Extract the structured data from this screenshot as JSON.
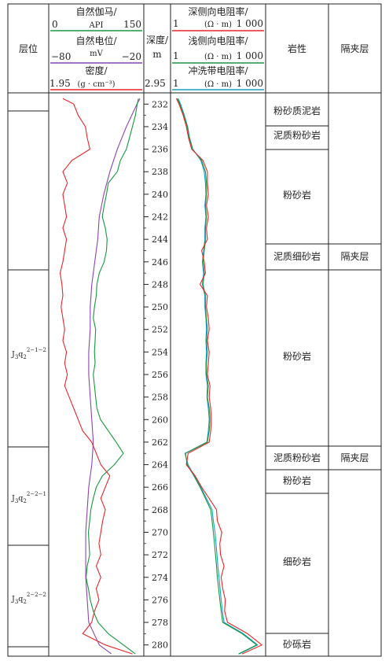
{
  "header": {
    "layer": "层位",
    "depth_label": "深度/",
    "depth_unit": "m",
    "lithology": "岩性",
    "interlayer": "隔夹层",
    "gamma": {
      "title": "自然伽马/",
      "unit": "API",
      "min": "0",
      "max": "150"
    },
    "sp": {
      "title": "自然电位/",
      "unit": "mV",
      "min": "−80",
      "max": "−20"
    },
    "density": {
      "title": "密度/",
      "unit_left": "1.95",
      "unit_mid": "(g · cm⁻³)",
      "unit_right": "2.95"
    },
    "deep_res": {
      "title": "深侧向电阻率/",
      "min": "1",
      "unit": "(Ω · m)",
      "max": "1 000"
    },
    "shallow_res": {
      "title": "浅侧向电阻率/",
      "min": "1",
      "unit": "(Ω · m)",
      "max": "1 000"
    },
    "flush_res": {
      "title": "冲洗带电阻率/",
      "min": "1",
      "unit": "(Ω · m)",
      "max": "1 000"
    }
  },
  "depth_ticks": [
    "232",
    "234",
    "236",
    "238",
    "240",
    "242",
    "244",
    "246",
    "248",
    "250",
    "252",
    "254",
    "256",
    "258",
    "260",
    "262",
    "264",
    "266",
    "268",
    "270",
    "272",
    "274",
    "276",
    "278",
    "280"
  ],
  "strata": [
    {
      "base": "J",
      "sub1": "3",
      "mid": "q",
      "sub2": "2",
      "sup": "2−1−2"
    },
    {
      "base": "J",
      "sub1": "3",
      "mid": "q",
      "sub2": "2",
      "sup": "2−2−1"
    },
    {
      "base": "J",
      "sub1": "3",
      "mid": "q",
      "sub2": "2",
      "sup": "2−2−2"
    }
  ],
  "lithology": [
    "粉砂质泥岩",
    "泥质粉砂岩",
    "粉砂岩",
    "泥质细砂岩",
    "粉砂岩",
    "泥质粉砂岩",
    "粉砂岩",
    "细砂岩",
    "砂砾岩"
  ],
  "interlayers": [
    "隔夹层",
    "隔夹层"
  ],
  "colors": {
    "gamma": "#1a9641",
    "sp": "#8e44ad",
    "density": "#e8262b",
    "deep": "#e8262b",
    "shallow": "#1a9641",
    "flush": "#17a2c8"
  },
  "chart_data": {
    "type": "line",
    "depth_range": [
      231,
      281
    ],
    "depth_axis": "depth (m), downward",
    "series": [
      {
        "name": "自然伽马",
        "unit": "API",
        "range": [
          0,
          150
        ],
        "depth": [
          231.5,
          232,
          233,
          234,
          235,
          236,
          237,
          238,
          239,
          240,
          241,
          242,
          243,
          244,
          245,
          246,
          247,
          248,
          249,
          250,
          251,
          252,
          253,
          254,
          255,
          256,
          257,
          258,
          259,
          260,
          261,
          262,
          263,
          264,
          265,
          266,
          267,
          268,
          269,
          270,
          271,
          272,
          273,
          274,
          275,
          276,
          277,
          278,
          279,
          280,
          280.8
        ],
        "values": [
          145,
          143,
          140,
          135,
          130,
          125,
          115,
          110,
          95,
          92,
          88,
          85,
          90,
          93,
          92,
          88,
          80,
          76,
          75,
          72,
          70,
          74,
          73,
          72,
          73,
          70,
          72,
          74,
          76,
          82,
          95,
          108,
          120,
          105,
          85,
          75,
          70,
          66,
          64,
          62,
          63,
          64,
          60,
          58,
          62,
          65,
          70,
          78,
          95,
          120,
          140
        ]
      },
      {
        "name": "自然电位",
        "unit": "mV",
        "range": [
          -80,
          -20
        ],
        "depth": [
          231.5,
          232,
          234,
          236,
          238,
          240,
          242,
          244,
          246,
          248,
          250,
          252,
          254,
          256,
          258,
          260,
          262,
          264,
          266,
          268,
          270,
          272,
          274,
          276,
          278,
          280,
          280.8
        ],
        "values": [
          -21,
          -23,
          -30,
          -36,
          -41,
          -45,
          -48,
          -49,
          -51,
          -53,
          -54,
          -54,
          -55,
          -55,
          -54,
          -53,
          -52,
          -53,
          -55,
          -56,
          -57,
          -57,
          -57,
          -56,
          -55,
          -48,
          -40
        ]
      },
      {
        "name": "密度",
        "unit": "g·cm⁻³",
        "range": [
          1.95,
          2.95
        ],
        "depth": [
          231.5,
          232,
          233,
          234,
          235,
          236,
          237,
          238,
          239,
          240,
          241,
          242,
          243,
          244,
          245,
          246,
          247,
          248,
          249,
          250,
          251,
          252,
          253,
          254,
          255,
          256,
          257,
          258,
          259,
          260,
          261,
          262,
          263,
          264,
          265,
          266,
          267,
          268,
          269,
          270,
          271,
          272,
          273,
          274,
          275,
          276,
          277,
          278,
          279,
          280,
          280.8
        ],
        "values": [
          2.08,
          2.2,
          2.25,
          2.33,
          2.35,
          2.38,
          2.18,
          2.08,
          2.13,
          2.08,
          2.1,
          2.12,
          2.08,
          2.12,
          2.1,
          2.08,
          2.05,
          2.07,
          2.08,
          2.06,
          2.08,
          2.1,
          2.08,
          2.12,
          2.1,
          2.13,
          2.1,
          2.15,
          2.2,
          2.25,
          2.3,
          2.4,
          2.45,
          2.5,
          2.6,
          2.55,
          2.5,
          2.55,
          2.52,
          2.5,
          2.48,
          2.5,
          2.45,
          2.5,
          2.45,
          2.48,
          2.43,
          2.4,
          2.3,
          2.55,
          2.85
        ]
      },
      {
        "name": "深侧向电阻率",
        "unit": "Ω·m",
        "range": [
          1,
          1000
        ],
        "scale": "log",
        "depth": [
          231.5,
          232,
          233,
          234,
          235,
          236,
          237,
          238,
          239,
          240,
          241,
          242,
          243,
          244,
          245,
          246,
          247,
          248,
          249,
          250,
          251,
          252,
          253,
          254,
          255,
          256,
          257,
          258,
          259,
          260,
          261,
          262,
          263,
          264,
          265,
          266,
          267,
          268,
          269,
          270,
          271,
          272,
          273,
          274,
          275,
          276,
          277,
          278,
          279,
          280,
          280.8
        ],
        "values": [
          1.3,
          1.6,
          2.2,
          2.8,
          3.3,
          4.2,
          10,
          14,
          14,
          15,
          13,
          15,
          13,
          14,
          9,
          11,
          12,
          8,
          14,
          13,
          15,
          16,
          14,
          16,
          15,
          14,
          17,
          16,
          18,
          19,
          18,
          16,
          3.2,
          2.8,
          5.5,
          9,
          16,
          28,
          30,
          42,
          36,
          38,
          50,
          40,
          45,
          55,
          52,
          65,
          300,
          900,
          200
        ]
      },
      {
        "name": "浅侧向电阻率",
        "unit": "Ω·m",
        "range": [
          1,
          1000
        ],
        "scale": "log",
        "depth": [
          231.5,
          232,
          233,
          234,
          235,
          236,
          237,
          238,
          239,
          240,
          241,
          242,
          243,
          244,
          245,
          246,
          247,
          248,
          249,
          250,
          251,
          252,
          253,
          254,
          255,
          256,
          257,
          258,
          259,
          260,
          261,
          262,
          263,
          264,
          265,
          266,
          267,
          268,
          269,
          270,
          271,
          272,
          273,
          274,
          275,
          276,
          277,
          278,
          279,
          280,
          280.8
        ],
        "values": [
          1.4,
          1.7,
          2.3,
          3,
          3.5,
          4.5,
          9,
          12,
          13,
          13,
          12,
          13,
          12,
          12,
          11,
          10,
          11,
          10,
          12,
          12,
          13,
          14,
          13,
          14,
          13,
          13,
          15,
          14,
          16,
          17,
          16,
          14,
          2.6,
          3,
          5,
          8,
          12,
          18,
          20,
          22,
          24,
          26,
          28,
          30,
          33,
          36,
          40,
          45,
          200,
          600,
          150
        ]
      },
      {
        "name": "冲洗带电阻率",
        "unit": "Ω·m",
        "range": [
          1,
          1000
        ],
        "scale": "log",
        "depth": [
          231.5,
          232,
          233,
          234,
          235,
          236,
          237,
          238,
          239,
          240,
          241,
          242,
          243,
          244,
          245,
          246,
          247,
          248,
          249,
          250,
          251,
          252,
          253,
          254,
          255,
          256,
          257,
          258,
          259,
          260,
          261,
          262,
          263,
          264,
          265,
          266,
          267,
          268,
          269,
          270,
          271,
          272,
          273,
          274,
          275,
          276,
          277,
          278,
          279,
          280,
          280.8
        ],
        "values": [
          1.5,
          1.8,
          2.4,
          3.1,
          3.6,
          4.6,
          8.5,
          11,
          12,
          12.5,
          11.5,
          12.5,
          11.5,
          11.5,
          10.5,
          9.5,
          10.5,
          9.5,
          11.5,
          11.5,
          12.5,
          13,
          12.5,
          13,
          12.5,
          12.5,
          14,
          13.5,
          15,
          16,
          15,
          13.5,
          2.5,
          3.2,
          5.2,
          8.5,
          13,
          20,
          22,
          25,
          27,
          29,
          31,
          34,
          37,
          40,
          44,
          50,
          220,
          650,
          160
        ]
      }
    ]
  }
}
